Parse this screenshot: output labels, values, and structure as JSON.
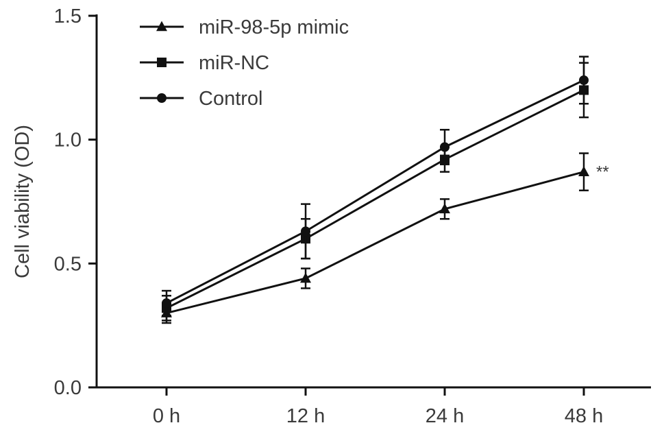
{
  "chart_data": {
    "type": "line",
    "categories": [
      "0 h",
      "12 h",
      "24 h",
      "48 h"
    ],
    "ylabel": "Cell viability (OD)",
    "ylim": [
      0,
      1.5
    ],
    "yticks": [
      "0.0",
      "0.5",
      "1.0",
      "1.5"
    ],
    "grid": false,
    "legend_position": "top-left",
    "series": [
      {
        "name": "miR-98-5p mimic",
        "marker": "triangle",
        "values": [
          0.3,
          0.44,
          0.72,
          0.87
        ],
        "errors": [
          0.04,
          0.04,
          0.04,
          0.075
        ]
      },
      {
        "name": "miR-NC",
        "marker": "square",
        "values": [
          0.32,
          0.6,
          0.92,
          1.2
        ],
        "errors": [
          0.05,
          0.08,
          0.05,
          0.11
        ]
      },
      {
        "name": "Control",
        "marker": "circle",
        "values": [
          0.34,
          0.63,
          0.97,
          1.24
        ],
        "errors": [
          0.05,
          0.11,
          0.07,
          0.095
        ]
      }
    ],
    "annotations": [
      {
        "text": "**",
        "category": "48 h",
        "series": "miR-98-5p mimic"
      }
    ],
    "colors": {
      "line": "#111111",
      "text": "#3a3a3a",
      "axis": "#111111"
    }
  }
}
